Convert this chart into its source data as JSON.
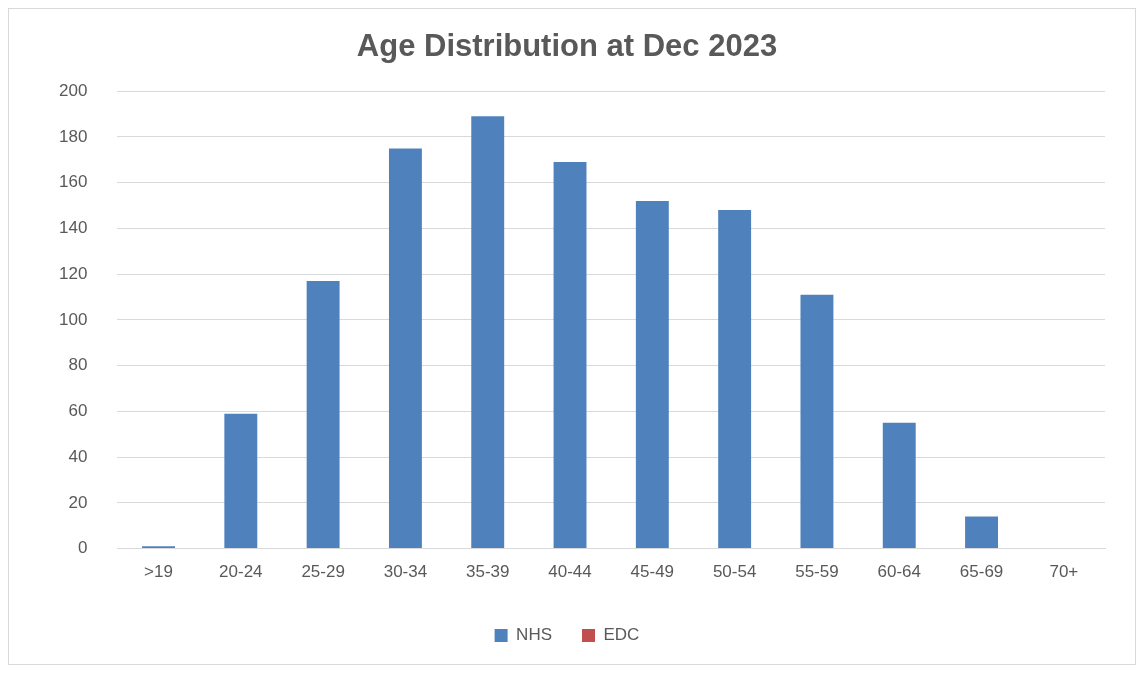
{
  "chart_data": {
    "type": "bar",
    "title": "Age Distribution at Dec 2023",
    "categories": [
      ">19",
      "20-24",
      "25-29",
      "30-34",
      "35-39",
      "40-44",
      "45-49",
      "50-54",
      "55-59",
      "60-64",
      "65-69",
      "70+"
    ],
    "series": [
      {
        "name": "NHS",
        "color": "#4f81bd",
        "values": [
          1,
          59,
          117,
          175,
          189,
          169,
          152,
          148,
          111,
          55,
          14,
          0
        ]
      },
      {
        "name": "EDC",
        "color": "#c0504d",
        "values": [
          null,
          null,
          null,
          null,
          null,
          null,
          null,
          null,
          null,
          null,
          null,
          null
        ]
      }
    ],
    "ylim": [
      0,
      200
    ],
    "yticks": [
      0,
      20,
      40,
      60,
      80,
      100,
      120,
      140,
      160,
      180,
      200
    ],
    "grid": "y",
    "legend": "bottom"
  }
}
